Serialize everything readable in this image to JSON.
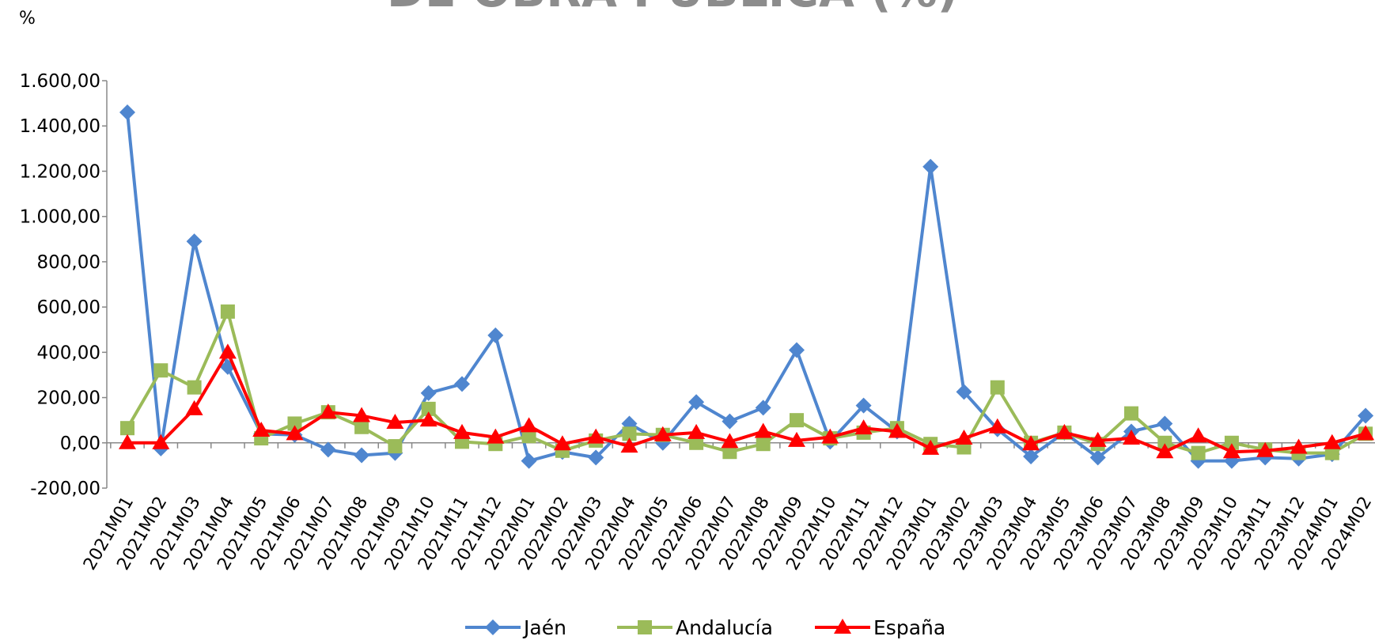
{
  "chart_data": {
    "type": "line",
    "title": "DE OBRA PÚBLICA (%)",
    "y_label": "%",
    "categories": [
      "2021M01",
      "2021M02",
      "2021M03",
      "2021M04",
      "2021M05",
      "2021M06",
      "2021M07",
      "2021M08",
      "2021M09",
      "2021M10",
      "2021M11",
      "2021M12",
      "2022M01",
      "2022M02",
      "2022M03",
      "2022M04",
      "2022M05",
      "2022M06",
      "2022M07",
      "2022M08",
      "2022M09",
      "2022M10",
      "2022M11",
      "2022M12",
      "2023M01",
      "2023M02",
      "2023M03",
      "2023M04",
      "2023M05",
      "2023M06",
      "2023M07",
      "2023M08",
      "2023M09",
      "2023M10",
      "2023M11",
      "2023M12",
      "2024M01",
      "2024M02"
    ],
    "series": [
      {
        "name": "Jaén",
        "color": "#4f86cf",
        "marker": "diamond",
        "values": [
          1460,
          -25,
          890,
          335,
          40,
          35,
          -30,
          -55,
          -45,
          220,
          260,
          475,
          -80,
          -40,
          -65,
          85,
          0,
          180,
          95,
          155,
          410,
          5,
          165,
          50,
          1220,
          225,
          60,
          -60,
          45,
          -65,
          50,
          85,
          -80,
          -80,
          -65,
          -70,
          -50,
          120
        ]
      },
      {
        "name": "Andalucía",
        "color": "#9bbb59",
        "marker": "square",
        "values": [
          65,
          320,
          245,
          580,
          20,
          85,
          135,
          70,
          -15,
          150,
          5,
          -5,
          30,
          -35,
          10,
          40,
          35,
          0,
          -40,
          -5,
          100,
          20,
          45,
          65,
          -5,
          -20,
          245,
          0,
          45,
          -5,
          130,
          0,
          -45,
          0,
          -30,
          -45,
          -45,
          40
        ]
      },
      {
        "name": "España",
        "color": "#ff0000",
        "marker": "triangle",
        "values": [
          0,
          0,
          150,
          400,
          55,
          40,
          135,
          120,
          90,
          100,
          45,
          25,
          75,
          -5,
          25,
          -15,
          35,
          45,
          5,
          50,
          10,
          25,
          65,
          50,
          -25,
          20,
          70,
          -5,
          45,
          10,
          20,
          -40,
          30,
          -40,
          -35,
          -20,
          0,
          40
        ]
      }
    ],
    "ylim": [
      -200,
      1600
    ],
    "yticks": [
      {
        "value": -200,
        "label": "-200,00"
      },
      {
        "value": 0,
        "label": "0,00"
      },
      {
        "value": 200,
        "label": "200,00"
      },
      {
        "value": 400,
        "label": "400,00"
      },
      {
        "value": 600,
        "label": "600,00"
      },
      {
        "value": 800,
        "label": "800,00"
      },
      {
        "value": 1000,
        "label": "1.000,00"
      },
      {
        "value": 1200,
        "label": "1.200,00"
      },
      {
        "value": 1400,
        "label": "1.400,00"
      },
      {
        "value": 1600,
        "label": "1.600,00"
      }
    ],
    "grid": false,
    "legend": "bottom"
  }
}
